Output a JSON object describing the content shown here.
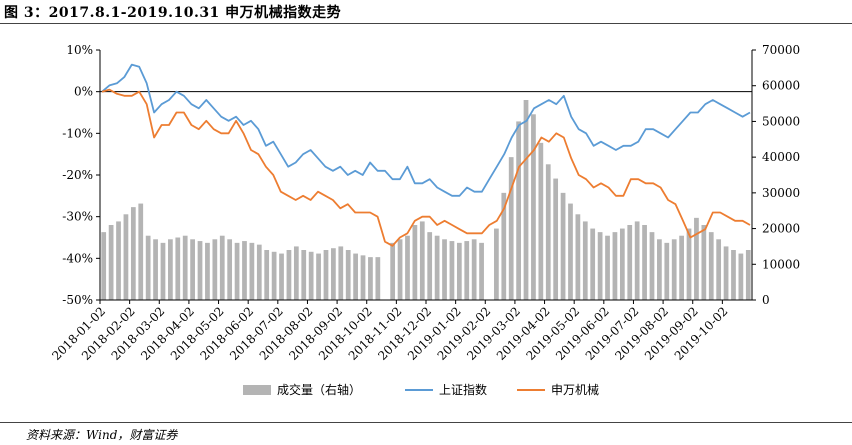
{
  "header": {
    "title": "图 3：2017.8.1-2019.10.31 申万机械指数走势"
  },
  "footer": {
    "source": "资料来源：Wind，财富证券"
  },
  "chart_data": {
    "type": "line",
    "y_left": {
      "ticks": [
        "10%",
        "0%",
        "-10%",
        "-20%",
        "-30%",
        "-40%",
        "-50%"
      ],
      "ylim": [
        -50,
        10
      ]
    },
    "y_right": {
      "ticks": [
        "70000",
        "60000",
        "50000",
        "40000",
        "30000",
        "20000",
        "10000",
        "0"
      ],
      "ylim": [
        0,
        70000
      ]
    },
    "x_ticks": [
      "2018-01-02",
      "2018-02-02",
      "2018-03-02",
      "2018-04-02",
      "2018-05-02",
      "2018-06-02",
      "2018-07-02",
      "2018-08-02",
      "2018-09-02",
      "2018-10-02",
      "2018-11-02",
      "2018-12-02",
      "2019-01-02",
      "2019-02-02",
      "2019-03-02",
      "2019-04-02",
      "2019-05-02",
      "2019-06-02",
      "2019-07-02",
      "2019-08-02",
      "2019-09-02",
      "2019-10-02"
    ],
    "legend": [
      "成交量（右轴）",
      "上证指数",
      "申万机械"
    ],
    "colors": {
      "volume": "#b4b4b4",
      "shanghai": "#5b9bd5",
      "machinery": "#ed7d31"
    },
    "series": [
      {
        "name": "上证指数",
        "axis": "left",
        "values": [
          0,
          1.5,
          2,
          3.5,
          6.5,
          6,
          2,
          -5,
          -3,
          -2,
          0,
          -1,
          -3,
          -4,
          -2,
          -4,
          -6,
          -7,
          -6,
          -8,
          -7,
          -9,
          -13,
          -12,
          -15,
          -18,
          -17,
          -15,
          -14,
          -16,
          -18,
          -19,
          -18,
          -20,
          -19,
          -20,
          -17,
          -19,
          -19,
          -21,
          -21,
          -18,
          -22,
          -22,
          -21,
          -23,
          -24,
          -25,
          -25,
          -23,
          -24,
          -24,
          -21,
          -18,
          -15,
          -11,
          -8,
          -7,
          -4,
          -3,
          -2,
          -3,
          -1,
          -6,
          -9,
          -10,
          -13,
          -12,
          -13,
          -14,
          -13,
          -13,
          -12,
          -9,
          -9,
          -10,
          -11,
          -9,
          -7,
          -5,
          -5,
          -3,
          -2,
          -3,
          -4,
          -5,
          -6,
          -5
        ]
      },
      {
        "name": "申万机械",
        "axis": "left",
        "values": [
          0,
          0.5,
          -0.5,
          -1,
          -1,
          0,
          -3,
          -11,
          -8,
          -8,
          -5,
          -5,
          -8,
          -9,
          -7,
          -9,
          -10,
          -10,
          -7,
          -10,
          -14,
          -15,
          -18,
          -20,
          -24,
          -25,
          -26,
          -25,
          -26,
          -24,
          -25,
          -26,
          -28,
          -27,
          -29,
          -29,
          -29,
          -30,
          -36,
          -37,
          -35,
          -34,
          -31,
          -30,
          -30,
          -32,
          -31,
          -32,
          -33,
          -34,
          -34,
          -34,
          -32,
          -31,
          -28,
          -23,
          -18,
          -16,
          -14,
          -11,
          -12,
          -10,
          -11,
          -16,
          -20,
          -21,
          -23,
          -22,
          -23,
          -25,
          -25,
          -21,
          -21,
          -22,
          -22,
          -23,
          -26,
          -27,
          -31,
          -35,
          -34,
          -33,
          -29,
          -29,
          -30,
          -31,
          -31,
          -32
        ]
      },
      {
        "name": "成交量（右轴）",
        "axis": "right",
        "values": [
          19000,
          21000,
          22000,
          24000,
          26000,
          27000,
          18000,
          17000,
          16000,
          17000,
          17500,
          18000,
          17000,
          16500,
          16000,
          17000,
          18000,
          17000,
          16000,
          16500,
          16000,
          15500,
          14000,
          13500,
          13000,
          14000,
          15000,
          14000,
          13500,
          13000,
          14000,
          14500,
          15000,
          14000,
          13000,
          12500,
          12000,
          12000,
          0,
          16000,
          17000,
          18000,
          21000,
          22000,
          19000,
          18000,
          17000,
          16500,
          16000,
          16500,
          17000,
          16000,
          0,
          20000,
          30000,
          40000,
          50000,
          56000,
          52000,
          44000,
          38000,
          34000,
          30000,
          27000,
          24000,
          22000,
          20000,
          19000,
          18000,
          19000,
          20000,
          21000,
          22000,
          21000,
          19000,
          17000,
          16000,
          17000,
          18000,
          20000,
          23000,
          21000,
          19000,
          17000,
          15000,
          14000,
          13000,
          14000
        ]
      }
    ]
  }
}
